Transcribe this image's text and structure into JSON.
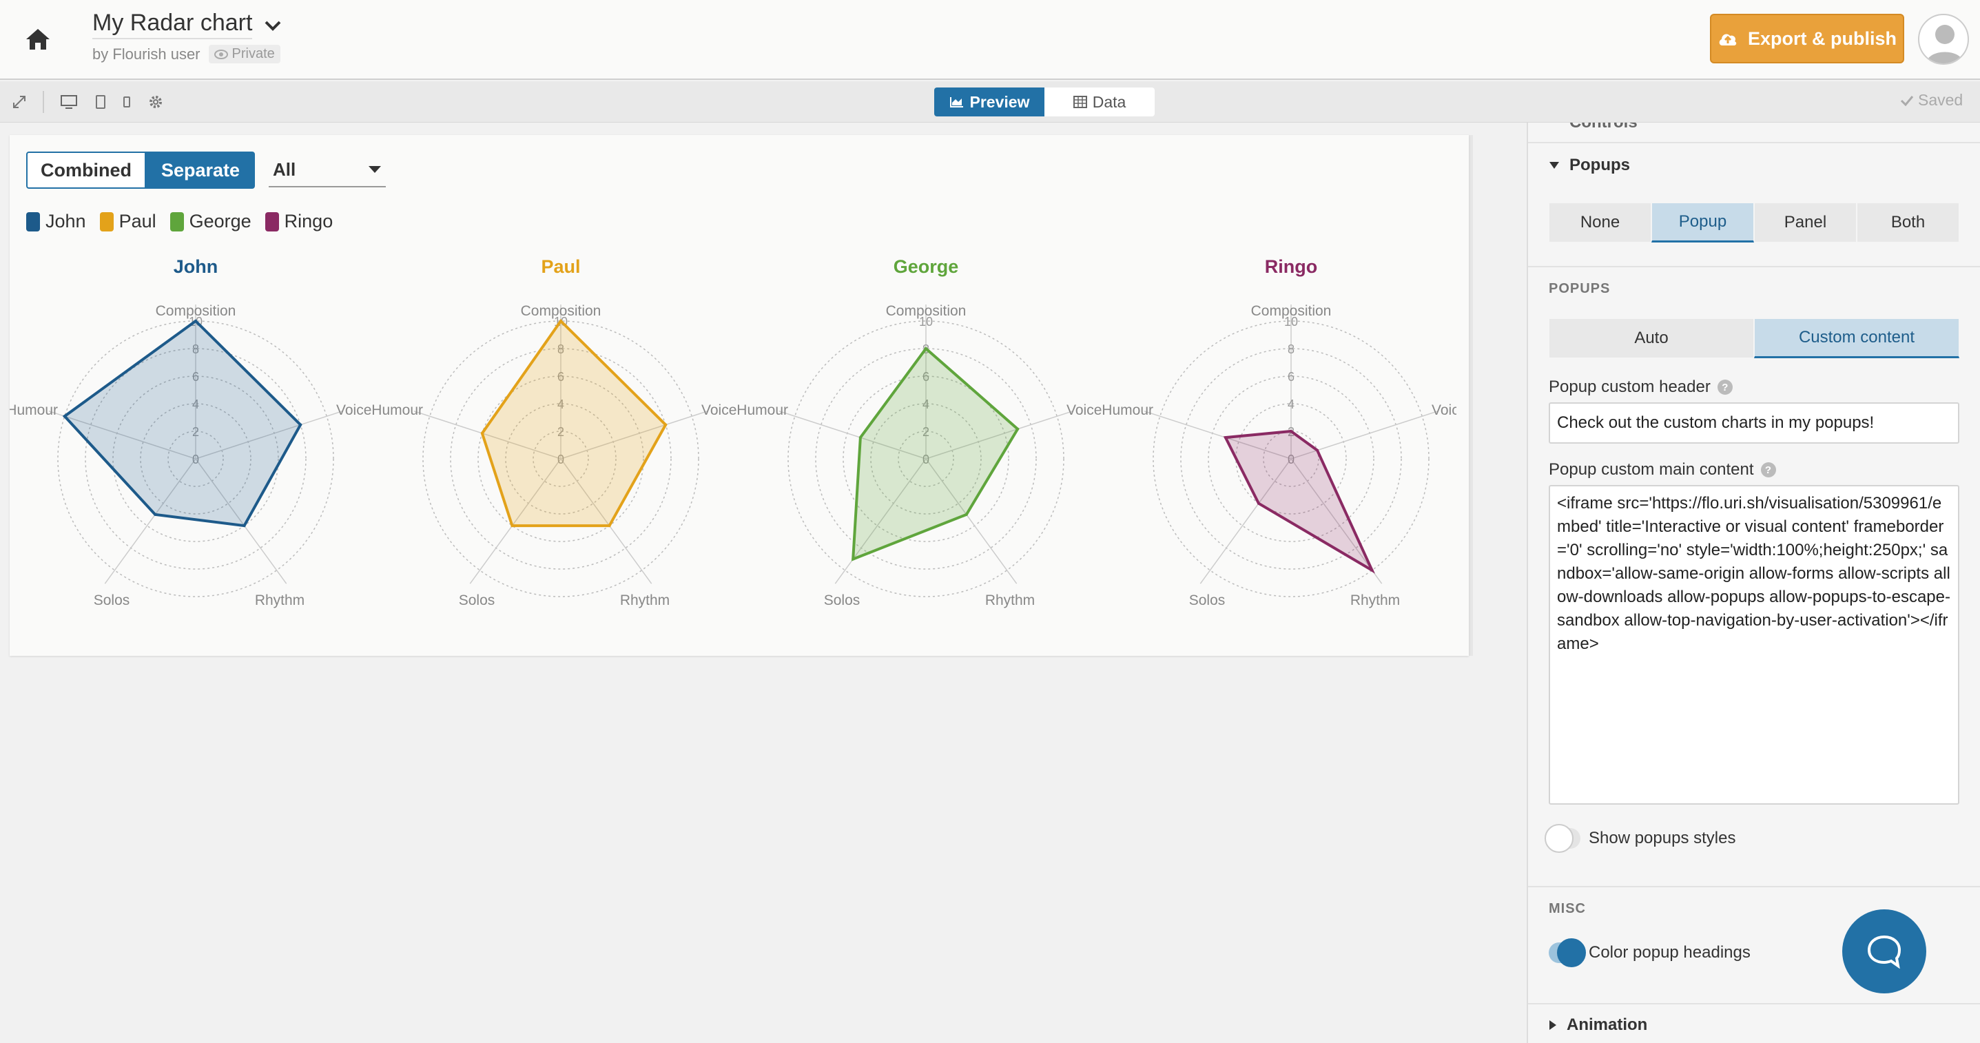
{
  "header": {
    "title": "My Radar chart",
    "byline": "by Flourish user",
    "privacy": "Private",
    "export_label": "Export & publish"
  },
  "toolbar": {
    "preview_label": "Preview",
    "data_label": "Data",
    "saved_label": "Saved"
  },
  "preview": {
    "mode_buttons": [
      "Combined",
      "Separate"
    ],
    "selected_mode": "Separate",
    "filter_value": "All",
    "legend": [
      {
        "name": "John",
        "color": "#1d5a8a"
      },
      {
        "name": "Paul",
        "color": "#e3a21a"
      },
      {
        "name": "George",
        "color": "#5fa53c"
      },
      {
        "name": "Ringo",
        "color": "#8a2a63"
      }
    ]
  },
  "chart_data": {
    "type": "radar",
    "axes": [
      "Composition",
      "Voice",
      "Rhythm",
      "Solos",
      "Humour"
    ],
    "scale_ticks": [
      "0",
      "2",
      "4",
      "6",
      "8",
      "10"
    ],
    "range": [
      0,
      10
    ],
    "series": [
      {
        "name": "John",
        "values": [
          10,
          8,
          6,
          5,
          10
        ],
        "color": "#1d5a8a",
        "fill": "rgba(29,90,138,0.2)"
      },
      {
        "name": "Paul",
        "values": [
          10,
          8,
          6,
          6,
          6
        ],
        "color": "#e3a21a",
        "fill": "rgba(227,162,26,0.22)"
      },
      {
        "name": "George",
        "values": [
          8,
          7,
          5,
          9,
          5
        ],
        "color": "#5fa53c",
        "fill": "rgba(95,165,60,0.22)"
      },
      {
        "name": "Ringo",
        "values": [
          2,
          2,
          10,
          4,
          5
        ],
        "color": "#8a2a63",
        "fill": "rgba(138,42,99,0.2)"
      }
    ]
  },
  "panel": {
    "top_cut_label": "Controls",
    "popups_section": "Popups",
    "popup_type_options": [
      "None",
      "Popup",
      "Panel",
      "Both"
    ],
    "popup_type_selected": "Popup",
    "popups_subhead": "POPUPS",
    "content_options": [
      "Auto",
      "Custom content"
    ],
    "content_selected": "Custom content",
    "header_label": "Popup custom header",
    "header_value": "Check out the custom charts in my popups!",
    "main_label": "Popup custom main content",
    "main_value": "<iframe src='https://flo.uri.sh/visualisation/5309961/embed' title='Interactive or visual content' frameborder='0' scrolling='no' style='width:100%;height:250px;' sandbox='allow-same-origin allow-forms allow-scripts allow-downloads allow-popups allow-popups-to-escape-sandbox allow-top-navigation-by-user-activation'></iframe>",
    "show_styles_label": "Show popups styles",
    "misc_subhead": "MISC",
    "color_headings_label": "Color popup headings",
    "animation_section": "Animation"
  }
}
